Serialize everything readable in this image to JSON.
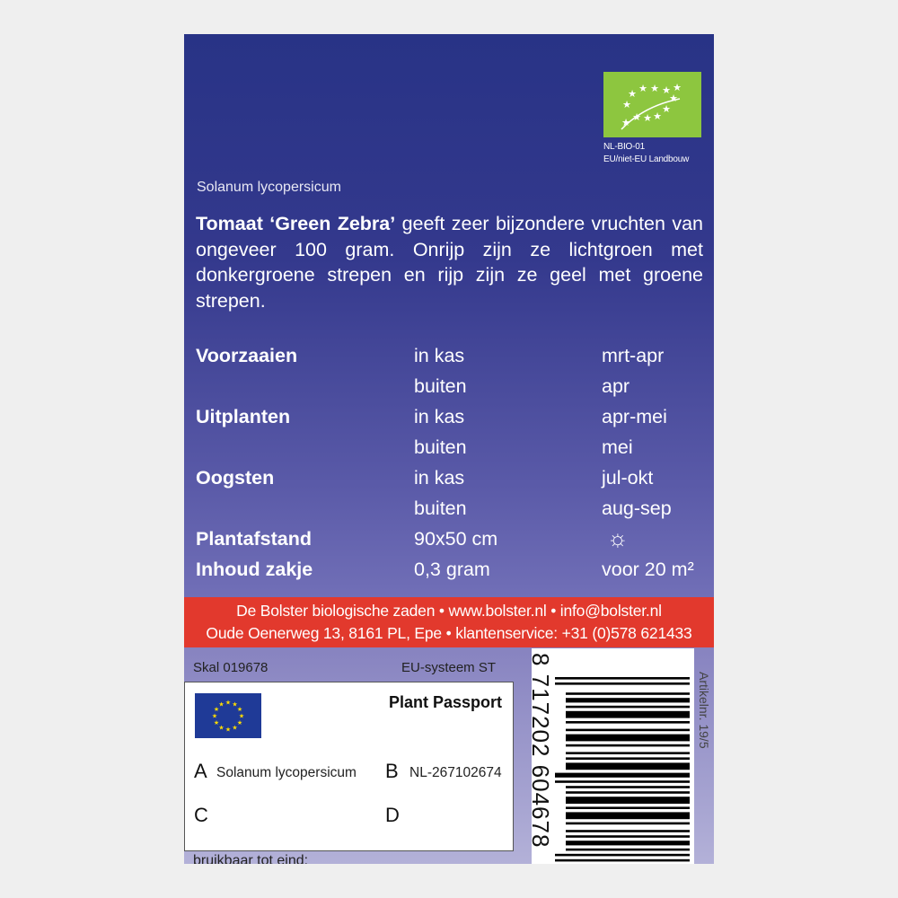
{
  "bio_logo": {
    "code": "NL-BIO-01",
    "origin": "EU/niet-EU Landbouw",
    "color": "#8dc63f"
  },
  "latin_name": "Solanum lycopersicum",
  "description": {
    "bold": "Tomaat ‘Green Zebra’",
    "rest": " geeft zeer bijzondere vruchten van ongeveer 100 gram. Onrijp zijn ze lichtgroen met donkergroene strepen en rijp zijn ze geel met groene strepen."
  },
  "schedule": [
    {
      "label": "Voorzaaien",
      "where": "in kas",
      "when": "mrt-apr"
    },
    {
      "label": "",
      "where": "buiten",
      "when": "apr"
    },
    {
      "label": "Uitplanten",
      "where": "in kas",
      "when": "apr-mei"
    },
    {
      "label": "",
      "where": "buiten",
      "when": "mei"
    },
    {
      "label": "Oogsten",
      "where": "in kas",
      "when": "jul-okt"
    },
    {
      "label": "",
      "where": "buiten",
      "when": "aug-sep"
    },
    {
      "label": "Plantafstand",
      "where": "90x50 cm",
      "when": ""
    },
    {
      "label": "Inhoud zakje",
      "where": "0,3 gram",
      "when": "voor 20 m²"
    }
  ],
  "sun_icon": "sun-icon",
  "contact": {
    "line1": "De Bolster biologische zaden • www.bolster.nl • info@bolster.nl",
    "line2": "Oude Oenerweg 13, 8161 PL, Epe • klantenservice: +31 (0)578 621433",
    "color": "#e2392d"
  },
  "skal": "Skal 019678",
  "eu_system": "EU-systeem ST",
  "passport": {
    "title": "Plant Passport",
    "A": "A",
    "A_value": "Solanum lycopersicum",
    "B": "B",
    "B_value": "NL-267102674",
    "C": "C",
    "D": "D"
  },
  "bruikbaar": "bruikbaar tot eind:",
  "barcode": "8 717202 604678",
  "article": "Artikelnr. 19/5"
}
